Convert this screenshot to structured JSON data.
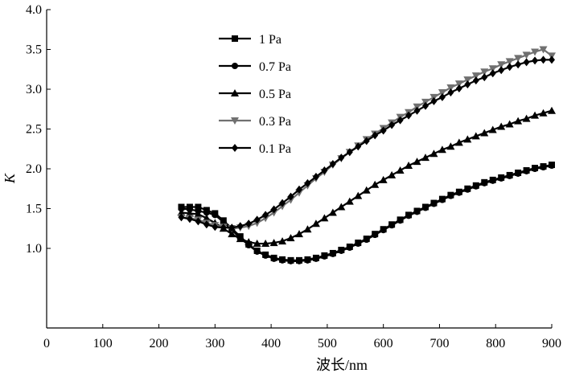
{
  "chart_data": {
    "type": "line",
    "title": "",
    "xlabel": "波长/nm",
    "ylabel": "K",
    "xlim": [
      0,
      900
    ],
    "ylim": [
      0,
      4.0
    ],
    "xticks": [
      0,
      100,
      200,
      300,
      400,
      500,
      600,
      700,
      800,
      900
    ],
    "xtick_labels": [
      "0",
      "100",
      "200",
      "300",
      "400",
      "500",
      "600",
      "700",
      "800",
      "900"
    ],
    "yticks": [
      1.0,
      1.5,
      2.0,
      2.5,
      3.0,
      3.5,
      4.0
    ],
    "ytick_labels": [
      "1.0",
      "1.5",
      "2.0",
      "2.5",
      "3.0",
      "3.5",
      "4.0"
    ],
    "grid": false,
    "legend_position": "top-left",
    "x": [
      240,
      255,
      270,
      285,
      300,
      315,
      330,
      345,
      360,
      375,
      390,
      405,
      420,
      435,
      450,
      465,
      480,
      495,
      510,
      525,
      540,
      555,
      570,
      585,
      600,
      615,
      630,
      645,
      660,
      675,
      690,
      705,
      720,
      735,
      750,
      765,
      780,
      795,
      810,
      825,
      840,
      855,
      870,
      885,
      900
    ],
    "series": [
      {
        "name": "1 Pa",
        "marker": "square",
        "color": "#000000",
        "values": [
          1.52,
          1.52,
          1.52,
          1.48,
          1.44,
          1.35,
          1.25,
          1.15,
          1.05,
          0.97,
          0.92,
          0.88,
          0.86,
          0.85,
          0.85,
          0.86,
          0.88,
          0.91,
          0.94,
          0.98,
          1.02,
          1.07,
          1.12,
          1.18,
          1.24,
          1.3,
          1.36,
          1.42,
          1.47,
          1.52,
          1.57,
          1.62,
          1.67,
          1.71,
          1.75,
          1.79,
          1.83,
          1.86,
          1.89,
          1.92,
          1.95,
          1.98,
          2.01,
          2.03,
          2.05
        ]
      },
      {
        "name": "0.7 Pa",
        "marker": "circle",
        "color": "#000000",
        "values": [
          1.5,
          1.49,
          1.47,
          1.45,
          1.42,
          1.33,
          1.23,
          1.13,
          1.04,
          0.96,
          0.91,
          0.87,
          0.85,
          0.84,
          0.84,
          0.85,
          0.87,
          0.9,
          0.93,
          0.97,
          1.01,
          1.06,
          1.11,
          1.17,
          1.23,
          1.29,
          1.35,
          1.41,
          1.46,
          1.51,
          1.56,
          1.61,
          1.66,
          1.7,
          1.74,
          1.78,
          1.82,
          1.85,
          1.88,
          1.91,
          1.94,
          1.97,
          2.0,
          2.02,
          2.04
        ]
      },
      {
        "name": "0.5 Pa",
        "marker": "triangle-up",
        "color": "#000000",
        "values": [
          1.45,
          1.44,
          1.43,
          1.38,
          1.32,
          1.25,
          1.18,
          1.12,
          1.08,
          1.06,
          1.06,
          1.07,
          1.09,
          1.13,
          1.18,
          1.24,
          1.31,
          1.38,
          1.45,
          1.52,
          1.59,
          1.66,
          1.73,
          1.8,
          1.86,
          1.92,
          1.98,
          2.04,
          2.09,
          2.14,
          2.19,
          2.24,
          2.28,
          2.33,
          2.37,
          2.41,
          2.45,
          2.49,
          2.53,
          2.56,
          2.6,
          2.63,
          2.67,
          2.7,
          2.73
        ]
      },
      {
        "name": "0.3 Pa",
        "marker": "triangle-down",
        "color": "#707070",
        "values": [
          1.39,
          1.38,
          1.36,
          1.32,
          1.29,
          1.27,
          1.25,
          1.26,
          1.28,
          1.32,
          1.38,
          1.45,
          1.53,
          1.61,
          1.7,
          1.79,
          1.88,
          1.96,
          2.05,
          2.13,
          2.21,
          2.29,
          2.37,
          2.44,
          2.51,
          2.58,
          2.65,
          2.71,
          2.78,
          2.84,
          2.9,
          2.96,
          3.02,
          3.07,
          3.12,
          3.17,
          3.22,
          3.26,
          3.31,
          3.35,
          3.39,
          3.43,
          3.47,
          3.5,
          3.42
        ]
      },
      {
        "name": "0.1 Pa",
        "marker": "diamond",
        "color": "#000000",
        "values": [
          1.39,
          1.37,
          1.34,
          1.3,
          1.27,
          1.26,
          1.26,
          1.28,
          1.31,
          1.36,
          1.42,
          1.49,
          1.57,
          1.65,
          1.74,
          1.82,
          1.9,
          1.98,
          2.06,
          2.14,
          2.21,
          2.28,
          2.35,
          2.42,
          2.48,
          2.55,
          2.61,
          2.67,
          2.73,
          2.79,
          2.85,
          2.9,
          2.96,
          3.01,
          3.06,
          3.11,
          3.15,
          3.2,
          3.24,
          3.28,
          3.31,
          3.34,
          3.36,
          3.37,
          3.37
        ]
      }
    ]
  }
}
